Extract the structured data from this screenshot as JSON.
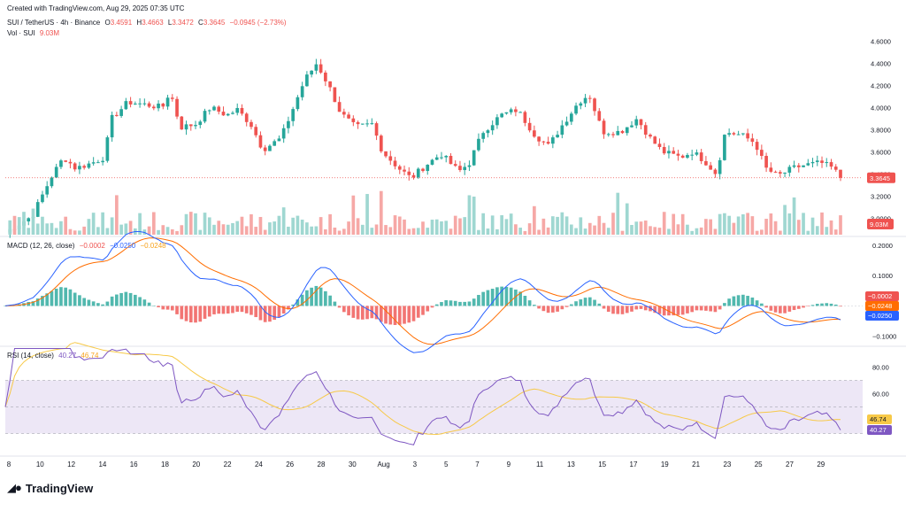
{
  "header": {
    "created": "Created with TradingView.com, Aug 29, 2025 07:35 UTC",
    "symbol": "SUI / TetherUS · 4h · Binance",
    "o_label": "O",
    "o": "3.4591",
    "h_label": "H",
    "h": "3.4663",
    "l_label": "L",
    "l": "3.3472",
    "c_label": "C",
    "c": "3.3645",
    "change": "−0.0945 (−2.73%)",
    "vol_label": "Vol · SUI",
    "vol": "9.03M"
  },
  "macd_legend": {
    "label": "MACD (12, 26, close)",
    "hist": "−0.0002",
    "macd": "−0.0250",
    "signal": "−0.0248"
  },
  "rsi_legend": {
    "label": "RSI (14, close)",
    "rsi": "40.27",
    "ma": "46.74"
  },
  "logo_text": "TradingView",
  "colors": {
    "up": "#26a69a",
    "down": "#ef5350",
    "vol_up": "#9fd7d1",
    "vol_down": "#f6a8a6",
    "macd": "#2962ff",
    "signal": "#ff6d00",
    "rsi": "#7e57c2",
    "rsi_ma": "#f7c948",
    "rsi_band": "#ede7f6"
  },
  "chart_data": [
    {
      "type": "candlestick",
      "title": "SUI / TetherUS · 4h · Binance",
      "x_ticks": [
        "8",
        "10",
        "12",
        "14",
        "16",
        "18",
        "20",
        "22",
        "24",
        "26",
        "28",
        "30",
        "Aug",
        "3",
        "5",
        "7",
        "9",
        "11",
        "13",
        "15",
        "17",
        "19",
        "21",
        "23",
        "25",
        "27",
        "29"
      ],
      "y_ticks": [
        "4.6000",
        "4.4000",
        "4.2000",
        "4.0000",
        "3.8000",
        "3.6000",
        "3.4000",
        "3.2000",
        "3.0000"
      ],
      "ylim": [
        2.85,
        4.62
      ],
      "last_price": "3.3645",
      "volume_label": "9.03M",
      "anchors": [
        {
          "x": 7,
          "y": 2.87
        },
        {
          "x": 8.8,
          "y": 3.02
        },
        {
          "x": 10.1,
          "y": 3.38
        },
        {
          "x": 10.9,
          "y": 3.55
        },
        {
          "x": 11.7,
          "y": 3.45
        },
        {
          "x": 12.8,
          "y": 3.5
        },
        {
          "x": 13.6,
          "y": 3.55
        },
        {
          "x": 14.1,
          "y": 3.9
        },
        {
          "x": 15.2,
          "y": 4.05
        },
        {
          "x": 16.2,
          "y": 4.03
        },
        {
          "x": 17.5,
          "y": 4.0
        },
        {
          "x": 18,
          "y": 4.15
        },
        {
          "x": 18.7,
          "y": 3.82
        },
        {
          "x": 19.7,
          "y": 3.85
        },
        {
          "x": 20.7,
          "y": 4.0
        },
        {
          "x": 21.8,
          "y": 3.93
        },
        {
          "x": 22.5,
          "y": 3.98
        },
        {
          "x": 23.4,
          "y": 3.85
        },
        {
          "x": 24.2,
          "y": 3.62
        },
        {
          "x": 25.4,
          "y": 3.72
        },
        {
          "x": 26.1,
          "y": 3.95
        },
        {
          "x": 27,
          "y": 4.25
        },
        {
          "x": 27.8,
          "y": 4.4
        },
        {
          "x": 28.6,
          "y": 4.2
        },
        {
          "x": 29.4,
          "y": 3.95
        },
        {
          "x": 30.4,
          "y": 3.82
        },
        {
          "x": 31.5,
          "y": 3.85
        },
        {
          "x": 32.2,
          "y": 3.6
        },
        {
          "x": 33.3,
          "y": 3.45
        },
        {
          "x": 34.1,
          "y": 3.36
        },
        {
          "x": 35.1,
          "y": 3.48
        },
        {
          "x": 36.1,
          "y": 3.58
        },
        {
          "x": 37.3,
          "y": 3.42
        },
        {
          "x": 38,
          "y": 3.5
        },
        {
          "x": 38.9,
          "y": 3.78
        },
        {
          "x": 40.1,
          "y": 3.93
        },
        {
          "x": 41.2,
          "y": 3.98
        },
        {
          "x": 42.4,
          "y": 3.75
        },
        {
          "x": 43.3,
          "y": 3.65
        },
        {
          "x": 44.1,
          "y": 3.82
        },
        {
          "x": 45.3,
          "y": 4.05
        },
        {
          "x": 46,
          "y": 4.12
        },
        {
          "x": 46.9,
          "y": 3.78
        },
        {
          "x": 48.1,
          "y": 3.78
        },
        {
          "x": 49.2,
          "y": 3.9
        },
        {
          "x": 50.1,
          "y": 3.72
        },
        {
          "x": 50.9,
          "y": 3.6
        },
        {
          "x": 52.1,
          "y": 3.55
        },
        {
          "x": 52.9,
          "y": 3.6
        },
        {
          "x": 53.7,
          "y": 3.52
        },
        {
          "x": 54.5,
          "y": 3.4
        },
        {
          "x": 55.1,
          "y": 3.78
        },
        {
          "x": 56.2,
          "y": 3.75
        },
        {
          "x": 57.1,
          "y": 3.68
        },
        {
          "x": 57.8,
          "y": 3.45
        },
        {
          "x": 58.6,
          "y": 3.38
        },
        {
          "x": 59.6,
          "y": 3.45
        },
        {
          "x": 60.4,
          "y": 3.48
        },
        {
          "x": 61.5,
          "y": 3.5
        },
        {
          "x": 62.3,
          "y": 3.45
        },
        {
          "x": 62.8,
          "y": 3.3645
        }
      ]
    },
    {
      "type": "line",
      "title": "MACD (12, 26, close)",
      "y_ticks": [
        "0.2000",
        "0.1000",
        "−0.1000"
      ],
      "ylim": [
        -0.13,
        0.22
      ],
      "series": [
        {
          "name": "MACD",
          "color": "#2962ff",
          "value_label": "−0.0250"
        },
        {
          "name": "Signal",
          "color": "#ff6d00",
          "value_label": "−0.0248"
        },
        {
          "name": "Histogram",
          "value_label": "−0.0002"
        }
      ]
    },
    {
      "type": "line",
      "title": "RSI (14, close)",
      "y_ticks": [
        "80.00",
        "60.00"
      ],
      "ylim": [
        15,
        95
      ],
      "bands": [
        30,
        50,
        70
      ],
      "series": [
        {
          "name": "RSI",
          "color": "#7e57c2",
          "value_label": "40.27"
        },
        {
          "name": "MA",
          "color": "#f7c948",
          "value_label": "46.74"
        }
      ]
    }
  ]
}
